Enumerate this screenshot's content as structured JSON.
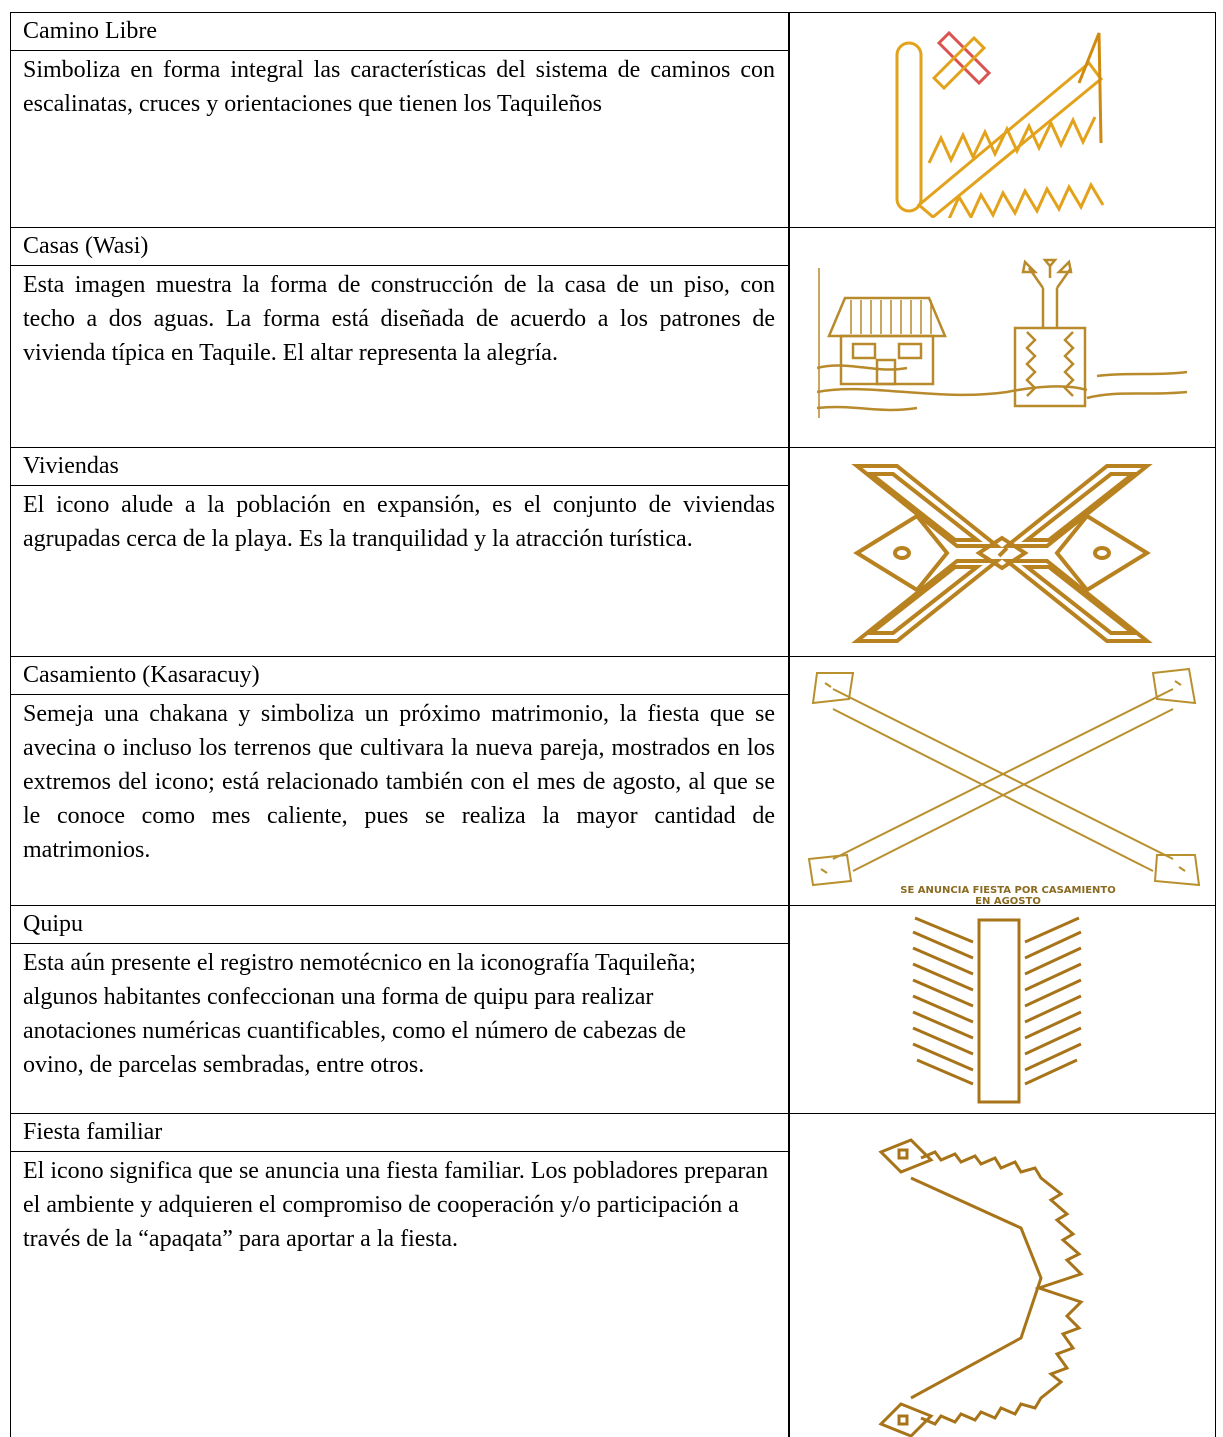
{
  "rows": [
    {
      "title": "Camino Libre",
      "description": "Simboliza en forma integral las características del sistema de caminos con escalinatas, cruces y orientaciones que tienen los Taquileños"
    },
    {
      "title": "Casas (Wasi)",
      "description": "Esta imagen muestra la forma de construcción de la casa de un piso, con techo a dos aguas. La forma está diseñada de acuerdo a los patrones de vivienda típica en Taquile. El altar representa la alegría."
    },
    {
      "title": "Viviendas",
      "description": "El icono alude a la población en expansión, es el conjunto de viviendas agrupadas cerca de la playa. Es la tranquilidad y la atracción turística."
    },
    {
      "title": "Casamiento (Kasaracuy)",
      "description": "Semeja una chakana y simboliza un próximo matrimonio, la fiesta que se avecina o incluso los terrenos que cultivara la nueva pareja, mostrados en los extremos del icono; está relacionado también con el mes de agosto, al que se le conoce como mes caliente, pues se realiza la mayor cantidad de matrimonios.",
      "image_caption": [
        "SE ANUNCIA FIESTA POR CASAMIENTO",
        "EN AGOSTO"
      ]
    },
    {
      "title": "Quipu",
      "description": "Esta aún presente el registro nemotécnico en la iconografía Taquileña; algunos habitantes confeccionan una forma de quipu para realizar anotaciones numéricas cuantificables, como el número de cabezas de ovino, de parcelas sembradas, entre otros."
    },
    {
      "title": "Fiesta familiar",
      "description": "El icono significa que se anuncia una fiesta familiar. Los pobladores preparan el ambiente y adquieren el compromiso de cooperación y/o participación a través de la “apaqata”  para aportar a la fiesta."
    }
  ]
}
